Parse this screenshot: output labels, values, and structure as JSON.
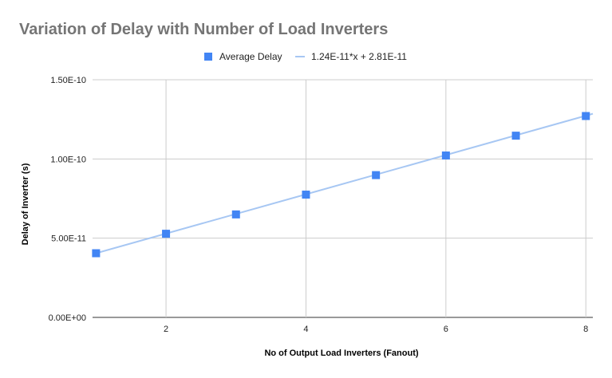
{
  "chart_data": {
    "type": "scatter",
    "title": "Variation of Delay with Number of Load Inverters",
    "xlabel": "No of Output Load Inverters (Fanout)",
    "ylabel": "Delay of Inverter (s)",
    "xlim": [
      0.95,
      8.1
    ],
    "ylim": [
      0,
      1.5e-10
    ],
    "x_ticks": [
      2,
      4,
      6,
      8
    ],
    "x_tick_labels": [
      "2",
      "4",
      "6",
      "8"
    ],
    "y_ticks": [
      0,
      5e-11,
      1e-10,
      1.5e-10
    ],
    "y_tick_labels": [
      "0.00E+00",
      "5.00E-11",
      "1.00E-10",
      "1.50E-10"
    ],
    "grid": true,
    "legend_position": "top",
    "series": [
      {
        "name": "Average Delay",
        "kind": "scatter",
        "marker": "square",
        "color": "#4285F4",
        "x": [
          1,
          2,
          3,
          4,
          5,
          6,
          7,
          8
        ],
        "y": [
          4.05e-11,
          5.28e-11,
          6.5e-11,
          7.75e-11,
          8.98e-11,
          1.022e-10,
          1.147e-10,
          1.271e-10
        ]
      },
      {
        "name": "1.24E-11*x + 2.81E-11",
        "kind": "trendline",
        "color": "#A7C7F3",
        "slope": 1.24e-11,
        "intercept": 2.81e-11
      }
    ]
  }
}
